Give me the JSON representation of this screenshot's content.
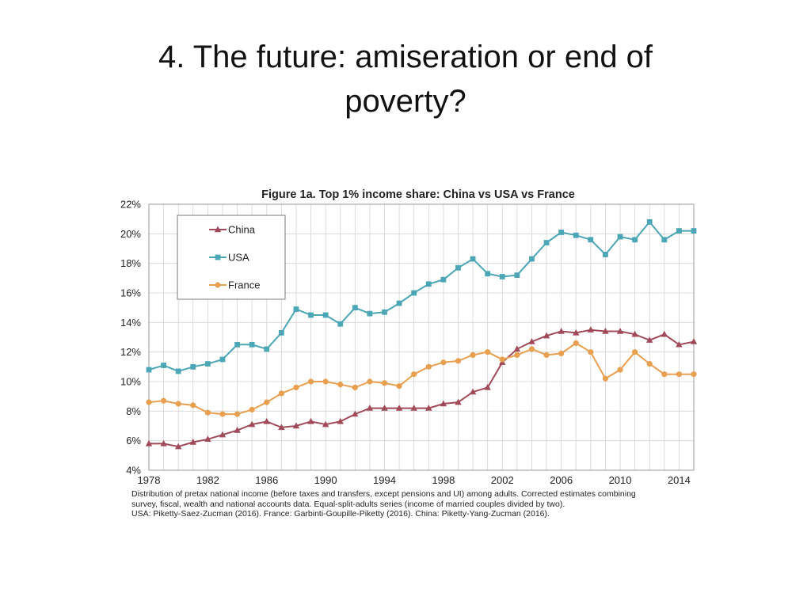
{
  "slide": {
    "title_line1": "4. The future: amiseration or end of",
    "title_line2": "poverty?"
  },
  "caption": {
    "line1": "Distribution of pretax national income (before taxes and transfers, except pensions and UI) among adults. Corrected estimates combining",
    "line2": "survey, fiscal, wealth and national accounts data. Equal-split-adults series (income of married couples divided by two).",
    "line3": "USA: Piketty-Saez-Zucman (2016). France: Garbinti-Goupille-Piketty (2016). China: Piketty-Yang-Zucman (2016)."
  },
  "chart_data": {
    "type": "line",
    "title": "Figure 1a. Top 1% income share: China vs USA vs France",
    "xlabel": "",
    "ylabel": "",
    "xlim": [
      1978,
      2015
    ],
    "ylim": [
      4,
      22
    ],
    "y_ticks": [
      4,
      6,
      8,
      10,
      12,
      14,
      16,
      18,
      20,
      22
    ],
    "y_tick_labels": [
      "4%",
      "6%",
      "8%",
      "10%",
      "12%",
      "14%",
      "16%",
      "18%",
      "20%",
      "22%"
    ],
    "x_ticks": [
      1978,
      1982,
      1986,
      1990,
      1994,
      1998,
      2002,
      2006,
      2010,
      2014
    ],
    "x_tick_labels": [
      "1978",
      "1982",
      "1986",
      "1990",
      "1994",
      "1998",
      "2002",
      "2006",
      "2010",
      "2014"
    ],
    "grid": true,
    "legend_position": "top-left",
    "x": [
      1978,
      1979,
      1980,
      1981,
      1982,
      1983,
      1984,
      1985,
      1986,
      1987,
      1988,
      1989,
      1990,
      1991,
      1992,
      1993,
      1994,
      1995,
      1996,
      1997,
      1998,
      1999,
      2000,
      2001,
      2002,
      2003,
      2004,
      2005,
      2006,
      2007,
      2008,
      2009,
      2010,
      2011,
      2012,
      2013,
      2014,
      2015
    ],
    "series": [
      {
        "name": "China",
        "color": "#a04a5a",
        "marker": "triangle",
        "values": [
          5.8,
          5.8,
          5.6,
          5.9,
          6.1,
          6.4,
          6.7,
          7.1,
          7.3,
          6.9,
          7.0,
          7.3,
          7.1,
          7.3,
          7.8,
          8.2,
          8.2,
          8.2,
          8.2,
          8.2,
          8.5,
          8.6,
          9.3,
          9.6,
          11.3,
          12.2,
          12.7,
          13.1,
          13.4,
          13.3,
          13.5,
          13.4,
          13.4,
          13.2,
          12.8,
          13.2,
          12.5,
          12.7
        ]
      },
      {
        "name": "USA",
        "color": "#4ba6b5",
        "marker": "square",
        "values": [
          10.8,
          11.1,
          10.7,
          11.0,
          11.2,
          11.5,
          12.5,
          12.5,
          12.2,
          13.3,
          14.9,
          14.5,
          14.5,
          13.9,
          15.0,
          14.6,
          14.7,
          15.3,
          16.0,
          16.6,
          16.9,
          17.7,
          18.3,
          17.3,
          17.1,
          17.2,
          18.3,
          19.4,
          20.1,
          19.9,
          19.6,
          18.6,
          19.8,
          19.6,
          20.8,
          19.6,
          20.2,
          20.2
        ]
      },
      {
        "name": "France",
        "color": "#e8a050",
        "marker": "circle",
        "values": [
          8.6,
          8.7,
          8.5,
          8.4,
          7.9,
          7.8,
          7.8,
          8.1,
          8.6,
          9.2,
          9.6,
          10.0,
          10.0,
          9.8,
          9.6,
          10.0,
          9.9,
          9.7,
          10.5,
          11.0,
          11.3,
          11.4,
          11.8,
          12.0,
          11.5,
          11.8,
          12.2,
          11.8,
          11.9,
          12.6,
          12.0,
          10.2,
          10.8,
          12.0,
          11.2,
          10.5,
          10.5,
          10.5
        ]
      }
    ]
  }
}
